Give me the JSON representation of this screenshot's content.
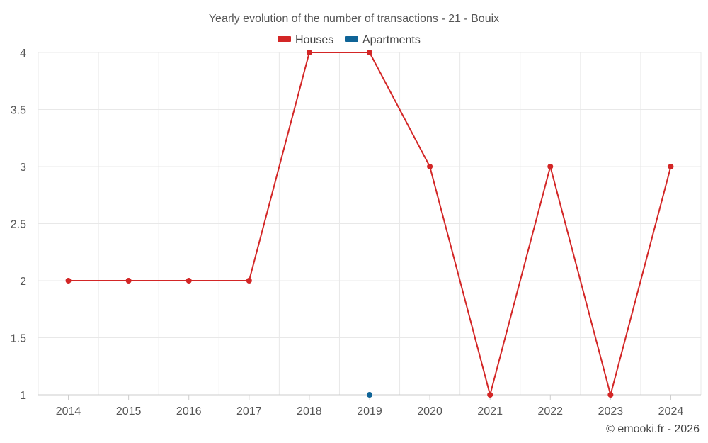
{
  "chart_data": {
    "type": "line",
    "title": "Yearly evolution of the number of transactions - 21 - Bouix",
    "xlabel": "",
    "ylabel": "",
    "categories": [
      "2014",
      "2015",
      "2016",
      "2017",
      "2018",
      "2019",
      "2020",
      "2021",
      "2022",
      "2023",
      "2024"
    ],
    "yticks": [
      "1",
      "1.5",
      "2",
      "2.5",
      "3",
      "3.5",
      "4"
    ],
    "ylim": [
      1,
      4
    ],
    "grid": true,
    "legend_position": "top-center",
    "series": [
      {
        "name": "Houses",
        "color": "#d32626",
        "values": [
          2,
          2,
          2,
          2,
          4,
          4,
          3,
          1,
          3,
          1,
          3
        ]
      },
      {
        "name": "Apartments",
        "color": "#0f6497",
        "values": [
          null,
          null,
          null,
          null,
          null,
          1,
          null,
          null,
          null,
          null,
          null
        ]
      }
    ]
  },
  "credit": "© emooki.fr - 2026"
}
